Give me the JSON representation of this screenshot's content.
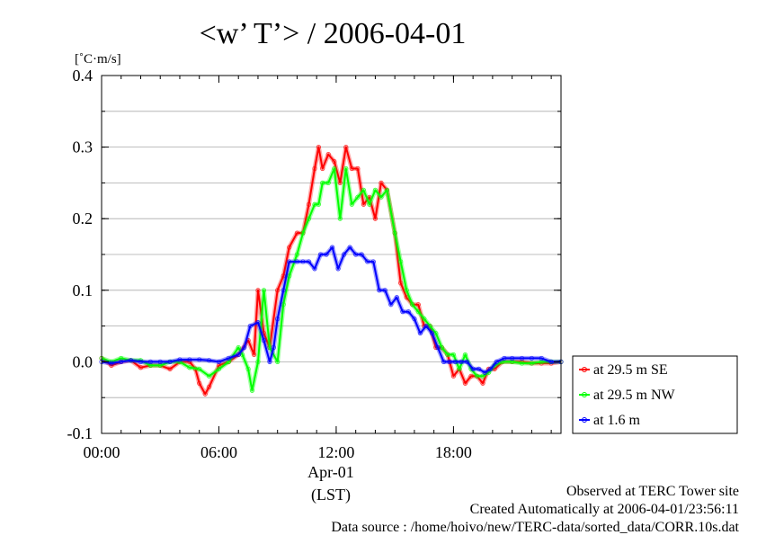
{
  "chart_data": {
    "type": "line",
    "title": "<w’ T’> / 2006-04-01",
    "ylabel": "[˚C·m/s]",
    "xlabel": "(LST)",
    "date_label": "Apr-01",
    "xlim": [
      0,
      23.5
    ],
    "ylim": [
      -0.1,
      0.4
    ],
    "x_ticks": [
      {
        "value": 0,
        "label": "00:00"
      },
      {
        "value": 6,
        "label": "06:00"
      },
      {
        "value": 12,
        "label": "12:00"
      },
      {
        "value": 18,
        "label": "18:00"
      }
    ],
    "y_ticks": [
      {
        "value": -0.1,
        "label": "-0.1"
      },
      {
        "value": 0.0,
        "label": "0.0"
      },
      {
        "value": 0.1,
        "label": "0.1"
      },
      {
        "value": 0.2,
        "label": "0.2"
      },
      {
        "value": 0.3,
        "label": "0.3"
      },
      {
        "value": 0.4,
        "label": "0.4"
      }
    ],
    "grid": true,
    "legend_position": "right",
    "series": [
      {
        "name": "at 29.5 m SE",
        "color": "#ff0000",
        "x": [
          0,
          0.5,
          1,
          1.5,
          2,
          2.5,
          3,
          3.5,
          4,
          4.5,
          4.8,
          5,
          5.3,
          5.5,
          6,
          6.5,
          7,
          7.5,
          7.8,
          8,
          8.3,
          8.6,
          9,
          9.3,
          9.6,
          10,
          10.3,
          10.6,
          10.9,
          11.1,
          11.3,
          11.6,
          11.9,
          12.2,
          12.5,
          12.8,
          13.1,
          13.4,
          13.7,
          14,
          14.3,
          14.6,
          15,
          15.3,
          15.6,
          15.9,
          16.2,
          16.5,
          16.8,
          17.1,
          17.4,
          17.7,
          18,
          18.3,
          18.6,
          18.9,
          19.2,
          19.5,
          19.8,
          20.1,
          20.5,
          21,
          21.5,
          22,
          22.5,
          23,
          23.5
        ],
        "y": [
          0.005,
          -0.005,
          0.0,
          0.002,
          -0.008,
          -0.005,
          -0.005,
          -0.01,
          0.0,
          0.0,
          -0.01,
          -0.03,
          -0.045,
          -0.035,
          -0.005,
          0.0,
          0.01,
          0.03,
          0.01,
          0.1,
          0.04,
          0.02,
          0.1,
          0.12,
          0.16,
          0.18,
          0.18,
          0.22,
          0.27,
          0.3,
          0.27,
          0.29,
          0.28,
          0.25,
          0.3,
          0.27,
          0.27,
          0.22,
          0.23,
          0.2,
          0.25,
          0.24,
          0.18,
          0.11,
          0.09,
          0.08,
          0.08,
          0.05,
          0.05,
          0.02,
          0.02,
          0.01,
          -0.02,
          -0.01,
          -0.03,
          -0.02,
          -0.02,
          -0.03,
          -0.01,
          -0.01,
          0.0,
          0.0,
          0.0,
          -0.002,
          -0.002,
          -0.002,
          0.0
        ]
      },
      {
        "name": "at 29.5 m NW",
        "color": "#00ff00",
        "x": [
          0,
          0.5,
          1,
          1.5,
          2,
          2.5,
          3,
          3.5,
          4,
          4.5,
          5,
          5.5,
          6,
          6.5,
          7,
          7.2,
          7.5,
          7.7,
          8,
          8.3,
          8.6,
          9,
          9.3,
          9.6,
          10,
          10.3,
          10.6,
          10.9,
          11.1,
          11.3,
          11.6,
          11.9,
          12.2,
          12.5,
          12.8,
          13.1,
          13.4,
          13.7,
          14,
          14.3,
          14.6,
          15,
          15.3,
          15.6,
          15.9,
          16.2,
          16.5,
          16.8,
          17.1,
          17.4,
          17.7,
          18,
          18.3,
          18.6,
          18.9,
          19.2,
          19.5,
          19.8,
          20.1,
          20.5,
          21,
          21.5,
          22,
          22.5,
          23,
          23.5
        ],
        "y": [
          0.005,
          0.0,
          0.005,
          0.002,
          0.002,
          -0.005,
          -0.005,
          0.0,
          0.0,
          -0.008,
          -0.01,
          -0.02,
          -0.01,
          0.0,
          0.02,
          0.01,
          -0.01,
          -0.04,
          0.0,
          0.1,
          0.02,
          0.0,
          0.08,
          0.12,
          0.15,
          0.18,
          0.2,
          0.22,
          0.22,
          0.25,
          0.25,
          0.27,
          0.2,
          0.27,
          0.22,
          0.23,
          0.24,
          0.22,
          0.24,
          0.23,
          0.24,
          0.18,
          0.14,
          0.1,
          0.08,
          0.07,
          0.06,
          0.05,
          0.04,
          0.02,
          0.01,
          0.01,
          -0.01,
          0.01,
          -0.01,
          -0.02,
          -0.02,
          -0.015,
          -0.005,
          0.0,
          0.0,
          -0.002,
          -0.002,
          0.0,
          0.0,
          0.0
        ]
      },
      {
        "name": "at 1.6 m",
        "color": "#0000ff",
        "x": [
          0,
          0.5,
          1,
          1.5,
          2,
          2.5,
          3,
          3.5,
          4,
          4.5,
          5,
          5.5,
          6,
          6.5,
          7,
          7.3,
          7.6,
          8,
          8.3,
          8.6,
          8.8,
          9,
          9.3,
          9.6,
          10,
          10.3,
          10.6,
          10.9,
          11.2,
          11.5,
          11.8,
          12.1,
          12.4,
          12.7,
          13,
          13.3,
          13.6,
          13.9,
          14.2,
          14.5,
          14.8,
          15.1,
          15.4,
          15.7,
          16,
          16.3,
          16.6,
          16.9,
          17.2,
          17.5,
          17.8,
          18.1,
          18.4,
          18.7,
          19,
          19.3,
          19.6,
          19.9,
          20.2,
          20.6,
          21,
          21.5,
          22,
          22.5,
          23,
          23.5
        ],
        "y": [
          0.0,
          -0.002,
          0.0,
          0.002,
          0.0,
          0.0,
          0.0,
          0.0,
          0.003,
          0.003,
          0.003,
          0.002,
          0.0,
          0.005,
          0.01,
          0.02,
          0.05,
          0.055,
          0.03,
          0.0,
          0.02,
          0.06,
          0.1,
          0.14,
          0.14,
          0.14,
          0.14,
          0.13,
          0.15,
          0.15,
          0.16,
          0.13,
          0.15,
          0.16,
          0.15,
          0.15,
          0.14,
          0.14,
          0.1,
          0.1,
          0.08,
          0.09,
          0.07,
          0.07,
          0.06,
          0.04,
          0.05,
          0.04,
          0.02,
          0.0,
          0.0,
          0.0,
          0.0,
          0.0,
          -0.01,
          -0.01,
          -0.015,
          -0.01,
          0.0,
          0.005,
          0.005,
          0.005,
          0.005,
          0.005,
          0.0,
          0.0
        ]
      }
    ]
  },
  "footer": {
    "line1": "Observed at TERC Tower site",
    "line2": "Created Automatically at 2006-04-01/23:56:11",
    "line3": "Data source : /home/hoivo/new/TERC-data/sorted_data/CORR.10s.dat"
  }
}
